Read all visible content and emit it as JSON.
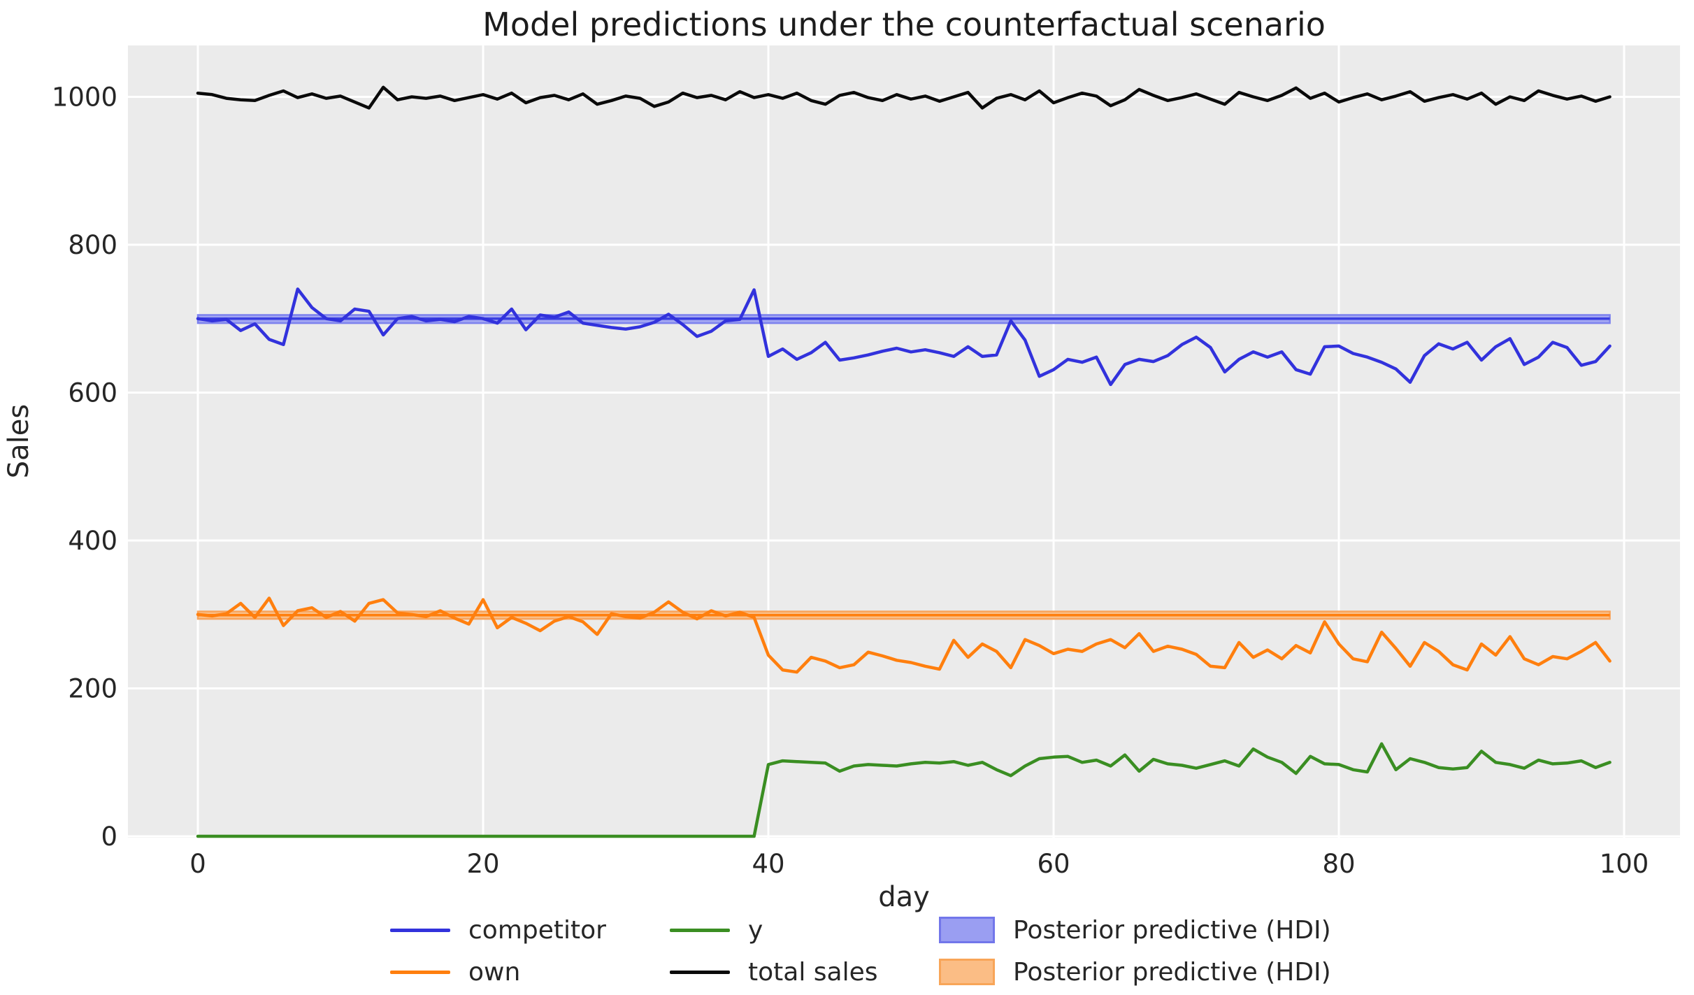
{
  "title": "Model predictions under the counterfactual scenario",
  "axes": {
    "xlabel": "day",
    "ylabel": "Sales",
    "xticks": [
      0,
      20,
      40,
      60,
      80,
      100
    ],
    "yticks": [
      0,
      200,
      400,
      600,
      800,
      1000
    ],
    "plot_background": "#ebebeb",
    "grid_color": "#ffffff",
    "text_color": "#262626"
  },
  "legend": {
    "entries": [
      {
        "label": "competitor",
        "type": "line",
        "color": "#3232dc"
      },
      {
        "label": "y",
        "type": "line",
        "color": "#3a8e22"
      },
      {
        "label": "Posterior predictive (HDI)",
        "type": "patch",
        "fill": "#9a9ef2",
        "edge": "#7276ea"
      },
      {
        "label": "own",
        "type": "line",
        "color": "#ff7f0e"
      },
      {
        "label": "total sales",
        "type": "line",
        "color": "#0a0a0a"
      },
      {
        "label": "Posterior predictive (HDI)",
        "type": "patch",
        "fill": "#fbbd85",
        "edge": "#f8a558"
      }
    ]
  },
  "chart_data": {
    "type": "line",
    "title": "Model predictions under the counterfactual scenario",
    "xlabel": "day",
    "ylabel": "Sales",
    "xlim": [
      -4.9,
      104.9
    ],
    "ylim": [
      0,
      1069
    ],
    "x_values": "integer days 0..99 (index of each series array)",
    "grid": true,
    "legend_position": "below",
    "series": [
      {
        "name": "competitor",
        "color": "#3232dc",
        "values": [
          700,
          697,
          699,
          684,
          693,
          672,
          665,
          740,
          715,
          700,
          697,
          713,
          710,
          678,
          700,
          703,
          697,
          699,
          696,
          703,
          700,
          694,
          713,
          685,
          705,
          702,
          709,
          694,
          691,
          688,
          686,
          689,
          695,
          706,
          692,
          676,
          683,
          697,
          699,
          739,
          649,
          659,
          645,
          654,
          668,
          644,
          647,
          651,
          656,
          660,
          655,
          658,
          654,
          649,
          662,
          649,
          651,
          697,
          671,
          622,
          631,
          645,
          641,
          648,
          611,
          638,
          645,
          642,
          650,
          665,
          675,
          661,
          628,
          645,
          655,
          648,
          655,
          631,
          625,
          662,
          663,
          653,
          648,
          641,
          632,
          614,
          650,
          666,
          659,
          668,
          644,
          662,
          673,
          638,
          648,
          668,
          661,
          637,
          642,
          663
        ]
      },
      {
        "name": "own",
        "color": "#ff7f0e",
        "values": [
          300,
          298,
          301,
          315,
          296,
          322,
          285,
          305,
          309,
          296,
          304,
          291,
          315,
          320,
          302,
          300,
          297,
          305,
          295,
          287,
          320,
          282,
          296,
          288,
          278,
          291,
          297,
          290,
          273,
          301,
          297,
          295,
          303,
          317,
          303,
          294,
          305,
          298,
          303,
          296,
          245,
          225,
          222,
          242,
          237,
          228,
          232,
          249,
          244,
          238,
          235,
          230,
          226,
          265,
          242,
          260,
          250,
          228,
          266,
          258,
          247,
          253,
          250,
          260,
          266,
          255,
          274,
          250,
          257,
          253,
          246,
          230,
          228,
          262,
          242,
          252,
          240,
          258,
          248,
          290,
          260,
          240,
          236,
          276,
          254,
          230,
          262,
          250,
          232,
          225,
          260,
          245,
          270,
          240,
          232,
          243,
          240,
          250,
          262,
          237
        ]
      },
      {
        "name": "y",
        "color": "#3a8e22",
        "values": [
          0,
          0,
          0,
          0,
          0,
          0,
          0,
          0,
          0,
          0,
          0,
          0,
          0,
          0,
          0,
          0,
          0,
          0,
          0,
          0,
          0,
          0,
          0,
          0,
          0,
          0,
          0,
          0,
          0,
          0,
          0,
          0,
          0,
          0,
          0,
          0,
          0,
          0,
          0,
          0,
          97,
          102,
          101,
          100,
          99,
          88,
          95,
          97,
          96,
          95,
          98,
          100,
          99,
          101,
          96,
          100,
          90,
          82,
          95,
          105,
          107,
          108,
          100,
          103,
          95,
          110,
          88,
          104,
          98,
          96,
          92,
          97,
          102,
          95,
          118,
          107,
          100,
          85,
          108,
          98,
          97,
          90,
          87,
          125,
          90,
          105,
          100,
          93,
          91,
          93,
          115,
          100,
          97,
          92,
          103,
          98,
          99,
          102,
          93,
          100
        ]
      },
      {
        "name": "total sales",
        "color": "#0a0a0a",
        "values": [
          1005,
          1003,
          998,
          996,
          995,
          1002,
          1008,
          999,
          1004,
          998,
          1001,
          993,
          985,
          1013,
          996,
          1000,
          998,
          1001,
          995,
          999,
          1003,
          997,
          1005,
          992,
          999,
          1002,
          996,
          1004,
          990,
          995,
          1001,
          998,
          987,
          993,
          1005,
          999,
          1002,
          996,
          1007,
          999,
          1003,
          998,
          1005,
          995,
          990,
          1002,
          1006,
          999,
          995,
          1003,
          997,
          1001,
          994,
          1000,
          1006,
          985,
          998,
          1003,
          996,
          1008,
          992,
          999,
          1005,
          1001,
          988,
          996,
          1010,
          1002,
          995,
          999,
          1004,
          997,
          990,
          1006,
          1000,
          995,
          1002,
          1012,
          998,
          1005,
          993,
          999,
          1004,
          996,
          1001,
          1007,
          994,
          999,
          1003,
          997,
          1005,
          990,
          1000,
          995,
          1008,
          1002,
          997,
          1001,
          994,
          1000
        ]
      }
    ],
    "bands": [
      {
        "name": "Posterior predictive (HDI) competitor",
        "x_range": [
          0,
          99
        ],
        "lo": 694,
        "hi": 705,
        "mean": 700,
        "fill": "#a2a6f2",
        "edge": "#7d82ee",
        "mean_color": "#3a3fe0"
      },
      {
        "name": "Posterior predictive (HDI) own",
        "x_range": [
          0,
          99
        ],
        "lo": 294,
        "hi": 304,
        "mean": 299,
        "fill": "#fac089",
        "edge": "#f8a45c",
        "mean_color": "#ff7f0e"
      }
    ]
  }
}
